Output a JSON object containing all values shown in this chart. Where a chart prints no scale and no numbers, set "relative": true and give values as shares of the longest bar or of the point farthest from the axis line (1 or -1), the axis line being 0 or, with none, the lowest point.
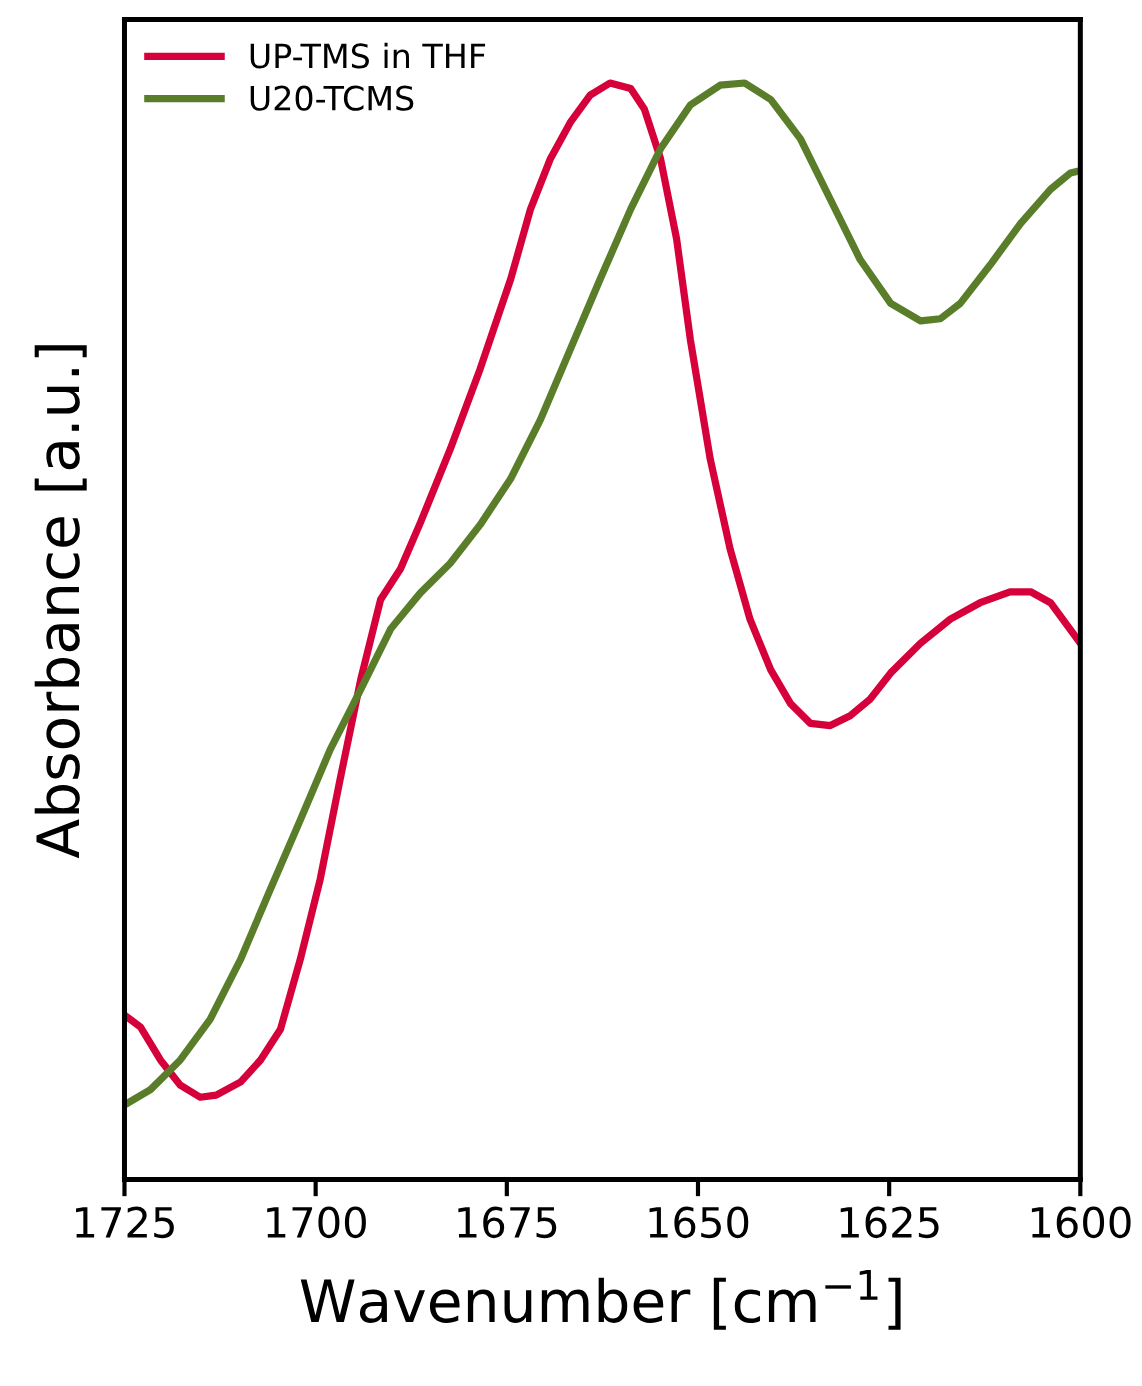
{
  "chart_data": {
    "type": "line",
    "xlabel": "Wavenumber [cm$^{−1}$]",
    "ylabel": "Absorbance [a.u.]",
    "relative": true,
    "xlim": [
      1725,
      1600
    ],
    "xticks": [
      1725,
      1700,
      1675,
      1650,
      1625,
      1600
    ],
    "legend": "top left",
    "grid": false,
    "marker": "none",
    "line_style": "solid",
    "tick_labels": "x",
    "series": [
      {
        "name": "UP-TMS in THF",
        "color": "#d6003b",
        "x": [
          1725,
          1722.9,
          1720.3,
          1717.7,
          1715.1,
          1713.0,
          1709.8,
          1707.2,
          1704.6,
          1702.0,
          1699.4,
          1696.8,
          1694.1,
          1691.5,
          1688.9,
          1686.3,
          1682.4,
          1678.5,
          1674.5,
          1671.9,
          1669.3,
          1666.7,
          1664.1,
          1661.5,
          1658.8,
          1657.0,
          1654.9,
          1652.8,
          1651.0,
          1648.4,
          1645.8,
          1643.2,
          1640.5,
          1637.9,
          1635.3,
          1632.7,
          1630.1,
          1627.5,
          1624.8,
          1620.9,
          1617.0,
          1613.1,
          1609.2,
          1606.5,
          1603.9,
          1600
        ],
        "values": [
          0.15,
          0.139,
          0.109,
          0.086,
          0.075,
          0.077,
          0.089,
          0.109,
          0.137,
          0.201,
          0.274,
          0.365,
          0.456,
          0.529,
          0.557,
          0.599,
          0.666,
          0.739,
          0.821,
          0.885,
          0.931,
          0.964,
          0.989,
          1,
          0.995,
          0.976,
          0.931,
          0.858,
          0.766,
          0.657,
          0.575,
          0.511,
          0.465,
          0.434,
          0.416,
          0.414,
          0.423,
          0.438,
          0.462,
          0.489,
          0.511,
          0.526,
          0.536,
          0.536,
          0.526,
          0.489
        ]
      },
      {
        "name": "U20-TCMS",
        "color": "#5a7d2a",
        "x": [
          1725,
          1721.6,
          1717.7,
          1713.8,
          1709.8,
          1705.9,
          1702.0,
          1698.1,
          1694.1,
          1690.2,
          1686.3,
          1682.4,
          1678.5,
          1674.5,
          1670.6,
          1666.7,
          1662.8,
          1658.8,
          1654.9,
          1651.0,
          1647.1,
          1643.9,
          1640.5,
          1636.6,
          1632.7,
          1628.8,
          1624.8,
          1620.9,
          1618.3,
          1615.7,
          1611.8,
          1607.8,
          1603.9,
          1601.3,
          1600
        ],
        "values": [
          0.068,
          0.082,
          0.109,
          0.146,
          0.201,
          0.265,
          0.328,
          0.392,
          0.447,
          0.502,
          0.535,
          0.562,
          0.597,
          0.639,
          0.693,
          0.757,
          0.821,
          0.885,
          0.94,
          0.98,
          0.998,
          1,
          0.985,
          0.949,
          0.894,
          0.839,
          0.799,
          0.783,
          0.785,
          0.799,
          0.834,
          0.872,
          0.903,
          0.918,
          0.92
        ]
      }
    ]
  }
}
